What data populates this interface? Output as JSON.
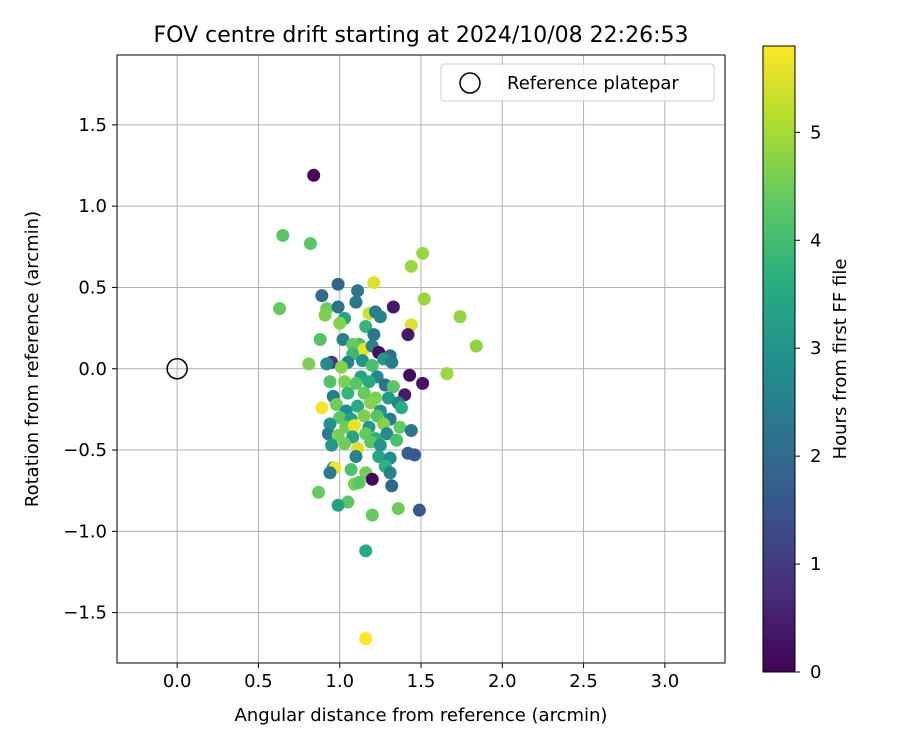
{
  "chart_data": {
    "type": "scatter",
    "title": "FOV centre drift starting at 2024/10/08 22:26:53",
    "xlabel": "Angular distance from reference (arcmin)",
    "ylabel": "Rotation from reference (arcmin)",
    "xlim": [
      -0.37,
      3.37
    ],
    "ylim": [
      -1.81,
      1.93
    ],
    "xticks": [
      "0.0",
      "0.5",
      "1.0",
      "1.5",
      "2.0",
      "2.5",
      "3.0"
    ],
    "yticks": [
      "−1.5",
      "−1.0",
      "−0.5",
      "0.0",
      "0.5",
      "1.0",
      "1.5"
    ],
    "grid": true,
    "legend": {
      "placement": "top-right",
      "entries": [
        "Reference platepar"
      ]
    },
    "reference_point": {
      "x": 0.0,
      "y": 0.0
    },
    "colorbar": {
      "label": "Hours from first FF file",
      "colormap": "viridis",
      "range": [
        0,
        5.8
      ],
      "ticks": [
        "0",
        "1",
        "2",
        "3",
        "4",
        "5"
      ]
    },
    "points": [
      {
        "x": 0.84,
        "y": 1.19,
        "h": 0.1
      },
      {
        "x": 0.65,
        "y": 0.82,
        "h": 4.3
      },
      {
        "x": 0.82,
        "y": 0.77,
        "h": 4.3
      },
      {
        "x": 1.51,
        "y": 0.71,
        "h": 4.9
      },
      {
        "x": 1.44,
        "y": 0.63,
        "h": 4.9
      },
      {
        "x": 1.21,
        "y": 0.53,
        "h": 5.5
      },
      {
        "x": 0.99,
        "y": 0.52,
        "h": 1.9
      },
      {
        "x": 0.89,
        "y": 0.45,
        "h": 2.0
      },
      {
        "x": 1.11,
        "y": 0.48,
        "h": 2.2
      },
      {
        "x": 1.52,
        "y": 0.43,
        "h": 4.9
      },
      {
        "x": 1.1,
        "y": 0.41,
        "h": 2.3
      },
      {
        "x": 0.63,
        "y": 0.37,
        "h": 4.4
      },
      {
        "x": 1.33,
        "y": 0.38,
        "h": 0.4
      },
      {
        "x": 0.92,
        "y": 0.37,
        "h": 4.5
      },
      {
        "x": 0.99,
        "y": 0.38,
        "h": 2.2
      },
      {
        "x": 1.18,
        "y": 0.34,
        "h": 5.4
      },
      {
        "x": 1.22,
        "y": 0.35,
        "h": 2.4
      },
      {
        "x": 0.91,
        "y": 0.33,
        "h": 4.6
      },
      {
        "x": 1.74,
        "y": 0.32,
        "h": 4.8
      },
      {
        "x": 1.03,
        "y": 0.31,
        "h": 3.4
      },
      {
        "x": 1.25,
        "y": 0.32,
        "h": 2.6
      },
      {
        "x": 1.16,
        "y": 0.26,
        "h": 3.8
      },
      {
        "x": 1.44,
        "y": 0.27,
        "h": 5.5
      },
      {
        "x": 1.0,
        "y": 0.28,
        "h": 4.7
      },
      {
        "x": 1.42,
        "y": 0.21,
        "h": 0.4
      },
      {
        "x": 1.21,
        "y": 0.21,
        "h": 2.3
      },
      {
        "x": 0.88,
        "y": 0.18,
        "h": 4.2
      },
      {
        "x": 1.02,
        "y": 0.18,
        "h": 2.5
      },
      {
        "x": 1.84,
        "y": 0.14,
        "h": 4.8
      },
      {
        "x": 1.12,
        "y": 0.15,
        "h": 4.1
      },
      {
        "x": 1.08,
        "y": 0.15,
        "h": 4.4
      },
      {
        "x": 1.15,
        "y": 0.12,
        "h": 5.6
      },
      {
        "x": 1.2,
        "y": 0.14,
        "h": 2.6
      },
      {
        "x": 1.24,
        "y": 0.1,
        "h": 0.2
      },
      {
        "x": 1.31,
        "y": 0.08,
        "h": 2.2
      },
      {
        "x": 1.08,
        "y": 0.09,
        "h": 3.9
      },
      {
        "x": 0.81,
        "y": 0.03,
        "h": 4.6
      },
      {
        "x": 0.95,
        "y": 0.04,
        "h": 0.9
      },
      {
        "x": 0.92,
        "y": 0.03,
        "h": 2.8
      },
      {
        "x": 1.05,
        "y": 0.04,
        "h": 2.6
      },
      {
        "x": 1.14,
        "y": 0.05,
        "h": 3.0
      },
      {
        "x": 1.2,
        "y": 0.02,
        "h": 4.1
      },
      {
        "x": 1.27,
        "y": 0.06,
        "h": 3.1
      },
      {
        "x": 1.01,
        "y": 0.01,
        "h": 4.7
      },
      {
        "x": 1.32,
        "y": 0.04,
        "h": 2.4
      },
      {
        "x": 1.66,
        "y": -0.03,
        "h": 4.9
      },
      {
        "x": 1.43,
        "y": -0.04,
        "h": 0.2
      },
      {
        "x": 1.51,
        "y": -0.09,
        "h": 0.3
      },
      {
        "x": 1.13,
        "y": -0.05,
        "h": 3.3
      },
      {
        "x": 1.23,
        "y": -0.05,
        "h": 2.7
      },
      {
        "x": 0.94,
        "y": -0.08,
        "h": 4.2
      },
      {
        "x": 1.03,
        "y": -0.08,
        "h": 4.6
      },
      {
        "x": 1.1,
        "y": -0.09,
        "h": 4.3
      },
      {
        "x": 1.18,
        "y": -0.08,
        "h": 3.6
      },
      {
        "x": 1.28,
        "y": -0.1,
        "h": 2.2
      },
      {
        "x": 1.33,
        "y": -0.11,
        "h": 4.3
      },
      {
        "x": 1.4,
        "y": -0.16,
        "h": 0.4
      },
      {
        "x": 0.96,
        "y": -0.17,
        "h": 2.4
      },
      {
        "x": 1.05,
        "y": -0.15,
        "h": 3.8
      },
      {
        "x": 1.15,
        "y": -0.15,
        "h": 4.4
      },
      {
        "x": 1.22,
        "y": -0.18,
        "h": 4.6
      },
      {
        "x": 1.3,
        "y": -0.18,
        "h": 3.1
      },
      {
        "x": 1.36,
        "y": -0.21,
        "h": 2.6
      },
      {
        "x": 0.89,
        "y": -0.24,
        "h": 5.7
      },
      {
        "x": 0.98,
        "y": -0.22,
        "h": 4.5
      },
      {
        "x": 1.04,
        "y": -0.26,
        "h": 2.8
      },
      {
        "x": 1.11,
        "y": -0.23,
        "h": 3.5
      },
      {
        "x": 1.19,
        "y": -0.21,
        "h": 4.7
      },
      {
        "x": 1.25,
        "y": -0.26,
        "h": 2.9
      },
      {
        "x": 1.38,
        "y": -0.24,
        "h": 3.6
      },
      {
        "x": 1.0,
        "y": -0.3,
        "h": 4.3
      },
      {
        "x": 1.07,
        "y": -0.31,
        "h": 3.3
      },
      {
        "x": 1.15,
        "y": -0.29,
        "h": 4.6
      },
      {
        "x": 1.23,
        "y": -0.29,
        "h": 4.2
      },
      {
        "x": 1.31,
        "y": -0.31,
        "h": 2.4
      },
      {
        "x": 0.94,
        "y": -0.34,
        "h": 3.0
      },
      {
        "x": 1.04,
        "y": -0.36,
        "h": 4.5
      },
      {
        "x": 1.09,
        "y": -0.35,
        "h": 5.6
      },
      {
        "x": 1.18,
        "y": -0.36,
        "h": 3.1
      },
      {
        "x": 1.27,
        "y": -0.34,
        "h": 4.7
      },
      {
        "x": 1.37,
        "y": -0.36,
        "h": 4.4
      },
      {
        "x": 0.93,
        "y": -0.4,
        "h": 2.4
      },
      {
        "x": 0.99,
        "y": -0.41,
        "h": 4.6
      },
      {
        "x": 1.08,
        "y": -0.42,
        "h": 3.4
      },
      {
        "x": 1.16,
        "y": -0.4,
        "h": 4.4
      },
      {
        "x": 1.22,
        "y": -0.43,
        "h": 3.7
      },
      {
        "x": 1.29,
        "y": -0.4,
        "h": 2.8
      },
      {
        "x": 1.44,
        "y": -0.38,
        "h": 2.3
      },
      {
        "x": 0.95,
        "y": -0.47,
        "h": 3.1
      },
      {
        "x": 1.03,
        "y": -0.46,
        "h": 4.5
      },
      {
        "x": 1.11,
        "y": -0.49,
        "h": 5.5
      },
      {
        "x": 1.19,
        "y": -0.45,
        "h": 4.3
      },
      {
        "x": 1.25,
        "y": -0.47,
        "h": 3.0
      },
      {
        "x": 1.35,
        "y": -0.44,
        "h": 4.1
      },
      {
        "x": 1.1,
        "y": -0.54,
        "h": 2.5
      },
      {
        "x": 1.24,
        "y": -0.54,
        "h": 3.4
      },
      {
        "x": 1.31,
        "y": -0.55,
        "h": 2.8
      },
      {
        "x": 1.42,
        "y": -0.52,
        "h": 1.8
      },
      {
        "x": 1.46,
        "y": -0.53,
        "h": 1.6
      },
      {
        "x": 0.96,
        "y": -0.61,
        "h": 2.1
      },
      {
        "x": 0.97,
        "y": -0.61,
        "h": 5.7
      },
      {
        "x": 1.07,
        "y": -0.62,
        "h": 4.1
      },
      {
        "x": 1.16,
        "y": -0.64,
        "h": 4.5
      },
      {
        "x": 1.28,
        "y": -0.6,
        "h": 3.7
      },
      {
        "x": 1.31,
        "y": -0.64,
        "h": 2.6
      },
      {
        "x": 0.94,
        "y": -0.64,
        "h": 2.4
      },
      {
        "x": 1.2,
        "y": -0.68,
        "h": 0.1
      },
      {
        "x": 1.09,
        "y": -0.71,
        "h": 4.6
      },
      {
        "x": 1.32,
        "y": -0.72,
        "h": 1.9
      },
      {
        "x": 1.12,
        "y": -0.7,
        "h": 4.3
      },
      {
        "x": 0.87,
        "y": -0.76,
        "h": 4.4
      },
      {
        "x": 1.05,
        "y": -0.82,
        "h": 4.3
      },
      {
        "x": 0.99,
        "y": -0.84,
        "h": 3.3
      },
      {
        "x": 1.36,
        "y": -0.86,
        "h": 4.5
      },
      {
        "x": 1.49,
        "y": -0.87,
        "h": 1.6
      },
      {
        "x": 1.2,
        "y": -0.9,
        "h": 4.4
      },
      {
        "x": 1.16,
        "y": -1.12,
        "h": 3.5
      },
      {
        "x": 1.16,
        "y": -1.66,
        "h": 5.8
      }
    ]
  }
}
